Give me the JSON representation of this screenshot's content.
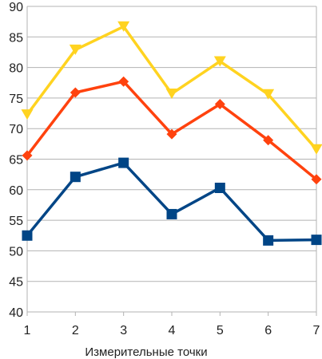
{
  "chart_data": {
    "type": "line",
    "xlabel": "Измерительные точки",
    "ylabel": "",
    "x": [
      1,
      2,
      3,
      4,
      5,
      6,
      7
    ],
    "ylim": [
      40,
      90
    ],
    "yticks": [
      40,
      45,
      50,
      55,
      60,
      65,
      70,
      75,
      80,
      85,
      90
    ],
    "grid": "horizontal",
    "legend": "none",
    "series": [
      {
        "color": "#004586",
        "marker": "square",
        "values": [
          52.5,
          62.1,
          64.4,
          56.0,
          60.3,
          51.7,
          51.8
        ]
      },
      {
        "color": "#ff420e",
        "marker": "diamond",
        "values": [
          65.6,
          75.9,
          77.7,
          69.1,
          74.0,
          68.1,
          61.7
        ]
      },
      {
        "color": "#ffd320",
        "marker": "triangle-down",
        "values": [
          72.3,
          82.9,
          86.7,
          75.7,
          81.0,
          75.6,
          66.6
        ]
      }
    ]
  }
}
